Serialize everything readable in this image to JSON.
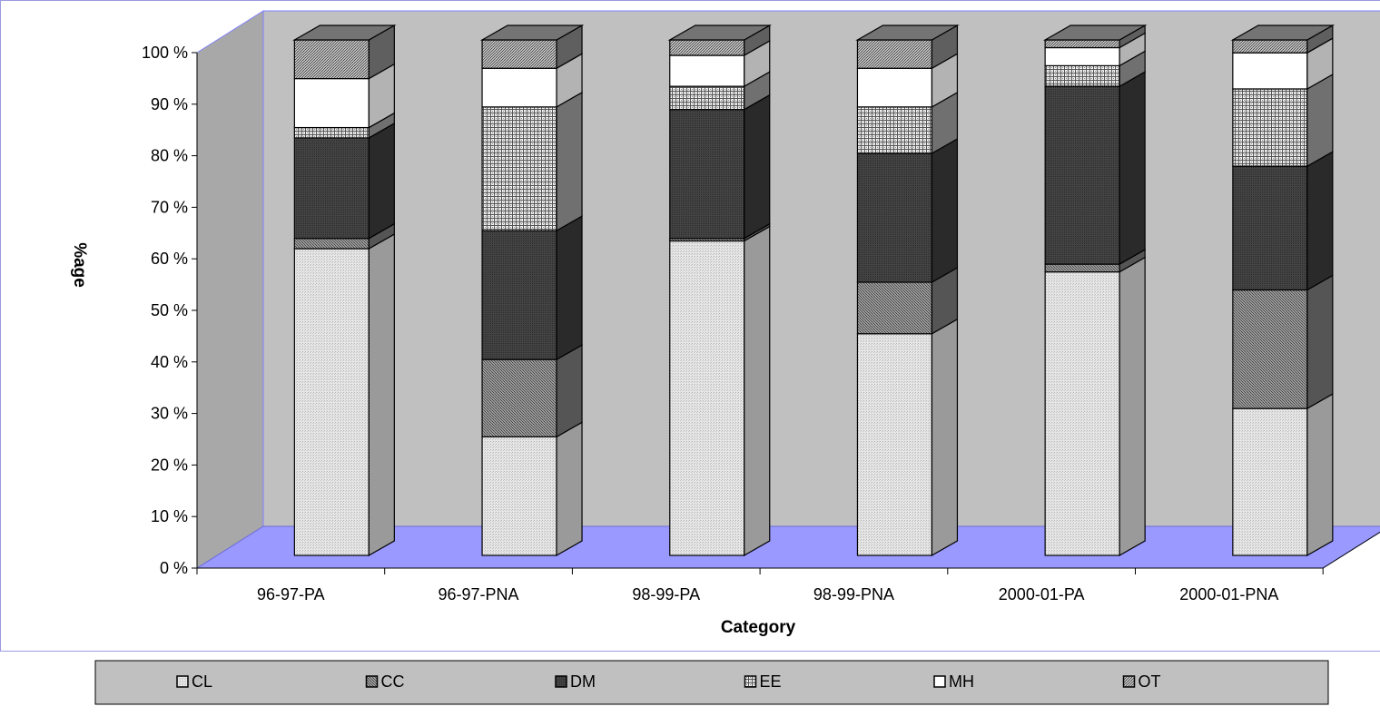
{
  "chart_data": {
    "type": "bar",
    "stacking": "percent",
    "view": "3d-column",
    "xlabel": "Category",
    "ylabel": "%age",
    "ylim": [
      0,
      100
    ],
    "yticks": [
      "0 %",
      "10 %",
      "20 %",
      "30 %",
      "40 %",
      "50 %",
      "60 %",
      "70 %",
      "80 %",
      "90 %",
      "100 %"
    ],
    "grid": false,
    "legend_position": "bottom",
    "categories": [
      "96-97-PA",
      "96-97-PNA",
      "98-99-PA",
      "98-99-PNA",
      "2000-01-PA",
      "2000-01-PNA"
    ],
    "series": [
      {
        "name": "CL",
        "values": [
          59.5,
          23,
          61,
          43,
          55,
          28.5
        ]
      },
      {
        "name": "CC",
        "values": [
          2,
          15,
          0.5,
          10,
          1.5,
          23
        ]
      },
      {
        "name": "DM",
        "values": [
          19.5,
          25,
          25,
          25,
          34.5,
          24
        ]
      },
      {
        "name": "EE",
        "values": [
          2,
          24,
          4.5,
          9,
          4,
          15
        ]
      },
      {
        "name": "MH",
        "values": [
          9.5,
          7.5,
          6,
          7.5,
          3.5,
          7
        ]
      },
      {
        "name": "OT",
        "values": [
          7.5,
          5.5,
          3,
          5.5,
          1.5,
          2.5
        ]
      }
    ],
    "colors": {
      "wall_back": "#c0c0c0",
      "wall_side": "#a8a8a8",
      "floor": "#9999ff",
      "wall_border": "#8080ff",
      "legend_bg": "#c0c0c0",
      "CL": "#dcdcdc",
      "CC": "#7a7a7a",
      "DM": "#3c3c3c",
      "EE": "#a0a0a0",
      "MH": "#ffffff",
      "OT": "#888888"
    }
  }
}
